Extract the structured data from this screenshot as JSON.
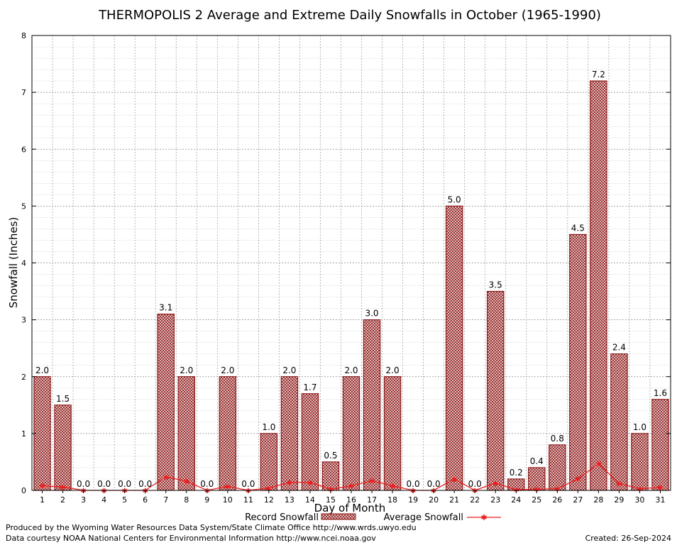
{
  "chart_data": {
    "type": "bar",
    "title": "THERMOPOLIS 2 Average and Extreme Daily Snowfalls in October (1965-1990)",
    "xlabel": "Day of Month",
    "ylabel": "Snowfall (Inches)",
    "ylim": [
      0,
      8
    ],
    "yticks": [
      "0",
      "1",
      "2",
      "3",
      "4",
      "5",
      "6",
      "7",
      "8"
    ],
    "categories": [
      "1",
      "2",
      "3",
      "4",
      "5",
      "6",
      "7",
      "8",
      "9",
      "10",
      "11",
      "12",
      "13",
      "14",
      "15",
      "16",
      "17",
      "18",
      "19",
      "20",
      "21",
      "22",
      "23",
      "24",
      "25",
      "26",
      "27",
      "28",
      "29",
      "30",
      "31"
    ],
    "series": [
      {
        "name": "Record Snowfall",
        "kind": "bar",
        "values": [
          2.0,
          1.5,
          0.0,
          0.0,
          0.0,
          0.0,
          3.1,
          2.0,
          0.0,
          2.0,
          0.0,
          1.0,
          2.0,
          1.7,
          0.5,
          2.0,
          3.0,
          2.0,
          0.0,
          0.0,
          5.0,
          0.0,
          3.5,
          0.2,
          0.4,
          0.8,
          4.5,
          7.2,
          2.4,
          1.0,
          1.6
        ],
        "labels": [
          "2.0",
          "1.5",
          "0.0",
          "0.0",
          "0.0",
          "0.0",
          "3.1",
          "2.0",
          "0.0",
          "2.0",
          "0.0",
          "1.0",
          "2.0",
          "1.7",
          "0.5",
          "2.0",
          "3.0",
          "2.0",
          "0.0",
          "0.0",
          "5.0",
          "0.0",
          "3.5",
          "0.2",
          "0.4",
          "0.8",
          "4.5",
          "7.2",
          "2.4",
          "1.0",
          "1.6"
        ],
        "color": "#8b1a1a"
      },
      {
        "name": "Average Snowfall",
        "kind": "line",
        "values": [
          0.08,
          0.06,
          0.0,
          0.0,
          0.0,
          0.0,
          0.24,
          0.16,
          0.0,
          0.07,
          0.0,
          0.04,
          0.14,
          0.14,
          0.02,
          0.08,
          0.17,
          0.08,
          0.0,
          0.0,
          0.2,
          0.0,
          0.13,
          0.01,
          0.02,
          0.03,
          0.2,
          0.47,
          0.12,
          0.03,
          0.05
        ],
        "color": "#ee1c1c"
      }
    ],
    "grid": true,
    "legend": "bottom-center"
  },
  "footer": {
    "credit_line1": "Produced by the Wyoming Water Resources Data System/State Climate Office http://www.wrds.uwyo.edu",
    "credit_line2": "Data courtesy NOAA National Centers for Environmental Information http://www.ncei.noaa.gov",
    "created": "Created:  26-Sep-2024"
  }
}
